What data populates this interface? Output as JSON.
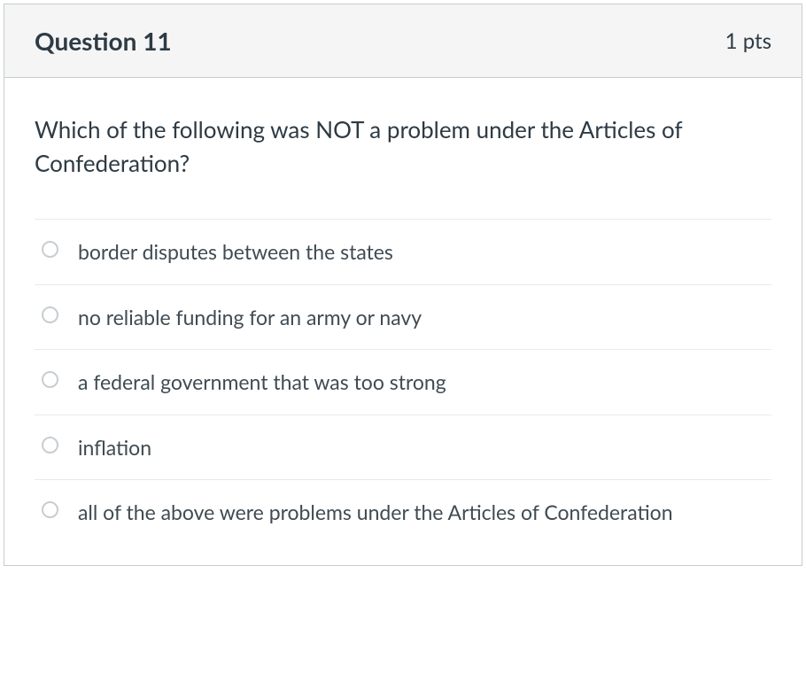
{
  "question": {
    "title": "Question 11",
    "points": "1 pts",
    "text": "Which of the following was NOT a problem under the Articles of Confederation?",
    "options": [
      {
        "label": "border disputes between the states"
      },
      {
        "label": "no reliable funding for an army or navy"
      },
      {
        "label": "a federal government that was too strong"
      },
      {
        "label": "inflation"
      },
      {
        "label": "all of the above were problems under the Articles of Confederation"
      }
    ]
  },
  "colors": {
    "border": "#c7cdd1",
    "header_bg": "#f5f5f5",
    "text_dark": "#2d3b45",
    "text_body": "#3f4b53",
    "divider": "#e8eaec"
  },
  "typography": {
    "title_fontsize": 28,
    "title_weight": 700,
    "points_fontsize": 24,
    "question_fontsize": 26,
    "option_fontsize": 23
  }
}
